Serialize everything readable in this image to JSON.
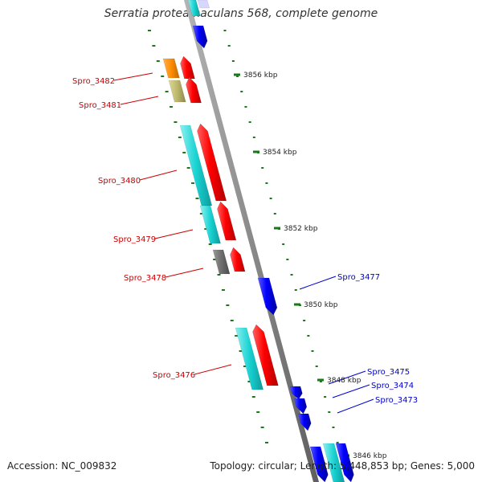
{
  "title": "Serratia proteamaculans 568, complete genome",
  "footer": {
    "accession": "Accession: NC_009832",
    "summary": "Topology: circular; Length: 5,448,853 bp; Genes: 5,000"
  },
  "colors": {
    "background": "#ffffff",
    "backbone": "#8a8a8a",
    "tick": "#1a7a1a",
    "forward_gene": "#ff0000",
    "reverse_gene": "#0000ff",
    "cog_cyan": "#19d3d3",
    "cog_orange": "#ff8c00",
    "cog_khaki": "#bdb76b",
    "cog_gray": "#6e6e6e",
    "forward_label": "#cc0000",
    "reverse_label": "#0000cc"
  },
  "ruler_labels": [
    "3856 kbp",
    "3854 kbp",
    "3852 kbp",
    "3850 kbp",
    "3848 kbp",
    "3846 kbp"
  ],
  "genes": [
    {
      "label": "Spro_3482",
      "strand": "forward",
      "cog_color": "orange"
    },
    {
      "label": "Spro_3481",
      "strand": "forward",
      "cog_color": "khaki"
    },
    {
      "label": "Spro_3480",
      "strand": "forward",
      "cog_color": "cyan"
    },
    {
      "label": "Spro_3479",
      "strand": "forward",
      "cog_color": "cyan"
    },
    {
      "label": "Spro_3478",
      "strand": "forward",
      "cog_color": "gray"
    },
    {
      "label": "Spro_3477",
      "strand": "reverse",
      "cog_color": "none"
    },
    {
      "label": "Spro_3476",
      "strand": "forward",
      "cog_color": "cyan"
    },
    {
      "label": "Spro_3475",
      "strand": "reverse",
      "cog_color": "none"
    },
    {
      "label": "Spro_3474",
      "strand": "reverse",
      "cog_color": "none"
    },
    {
      "label": "Spro_3473",
      "strand": "reverse",
      "cog_color": "none"
    }
  ]
}
